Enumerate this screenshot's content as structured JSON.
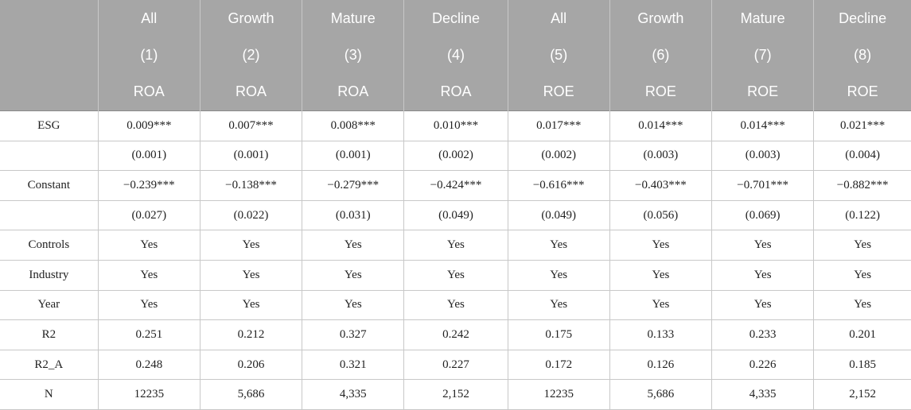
{
  "table": {
    "header": {
      "samples": [
        "All",
        "Growth",
        "Mature",
        "Decline",
        "All",
        "Growth",
        "Mature",
        "Decline"
      ],
      "numbers": [
        "(1)",
        "(2)",
        "(3)",
        "(4)",
        "(5)",
        "(6)",
        "(7)",
        "(8)"
      ],
      "depvars": [
        "ROA",
        "ROA",
        "ROA",
        "ROA",
        "ROE",
        "ROE",
        "ROE",
        "ROE"
      ]
    },
    "rows": [
      {
        "label": "ESG",
        "cells": [
          "0.009***",
          "0.007***",
          "0.008***",
          "0.010***",
          "0.017***",
          "0.014***",
          "0.014***",
          "0.021***"
        ]
      },
      {
        "label": "",
        "cells": [
          "(0.001)",
          "(0.001)",
          "(0.001)",
          "(0.002)",
          "(0.002)",
          "(0.003)",
          "(0.003)",
          "(0.004)"
        ]
      },
      {
        "label": "Constant",
        "cells": [
          "−0.239***",
          "−0.138***",
          "−0.279***",
          "−0.424***",
          "−0.616***",
          "−0.403***",
          "−0.701***",
          "−0.882***"
        ]
      },
      {
        "label": "",
        "cells": [
          "(0.027)",
          "(0.022)",
          "(0.031)",
          "(0.049)",
          "(0.049)",
          "(0.056)",
          "(0.069)",
          "(0.122)"
        ]
      },
      {
        "label": "Controls",
        "cells": [
          "Yes",
          "Yes",
          "Yes",
          "Yes",
          "Yes",
          "Yes",
          "Yes",
          "Yes"
        ]
      },
      {
        "label": "Industry",
        "cells": [
          "Yes",
          "Yes",
          "Yes",
          "Yes",
          "Yes",
          "Yes",
          "Yes",
          "Yes"
        ]
      },
      {
        "label": "Year",
        "cells": [
          "Yes",
          "Yes",
          "Yes",
          "Yes",
          "Yes",
          "Yes",
          "Yes",
          "Yes"
        ]
      },
      {
        "label": "R2",
        "cells": [
          "0.251",
          "0.212",
          "0.327",
          "0.242",
          "0.175",
          "0.133",
          "0.233",
          "0.201"
        ]
      },
      {
        "label": "R2_A",
        "cells": [
          "0.248",
          "0.206",
          "0.321",
          "0.227",
          "0.172",
          "0.126",
          "0.226",
          "0.185"
        ]
      },
      {
        "label": "N",
        "cells": [
          "12235",
          "5,686",
          "4,335",
          "2,152",
          "12235",
          "5,686",
          "4,335",
          "2,152"
        ]
      }
    ]
  }
}
